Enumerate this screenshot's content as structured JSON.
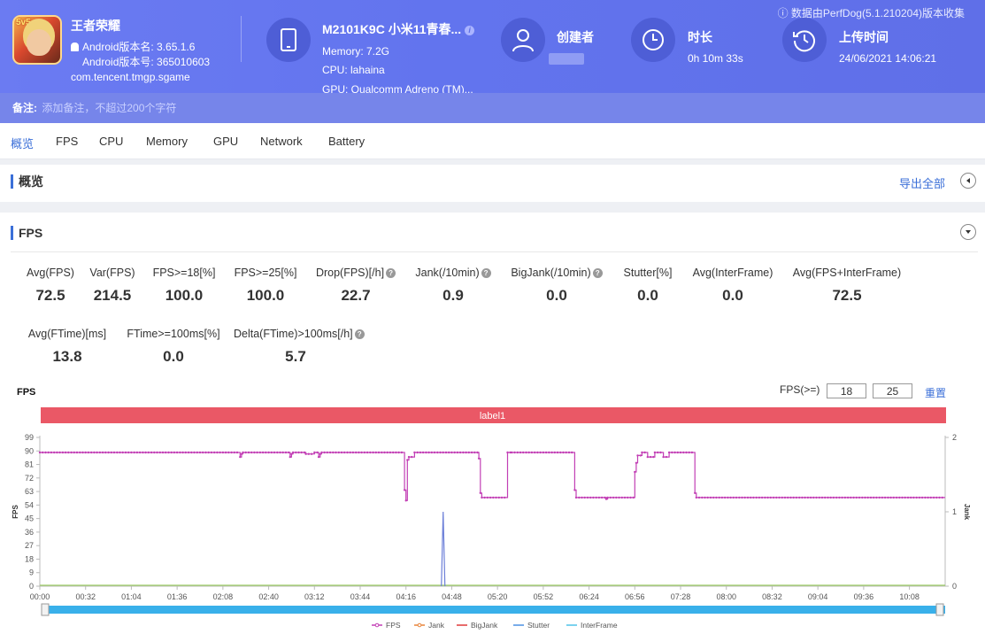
{
  "header": {
    "source_note": "数据由PerfDog(5.1.210204)版本收集",
    "app": {
      "name": "王者荣耀",
      "version_name": "Android版本名: 3.65.1.6",
      "version_code": "Android版本号: 365010603",
      "package": "com.tencent.tmgp.sgame",
      "icon_badge": "5v5"
    },
    "device": {
      "model": "M2101K9C 小米11青春...",
      "memory": "Memory: 7.2G",
      "cpu": "CPU: lahaina",
      "gpu": "GPU: Qualcomm Adreno (TM)..."
    },
    "creator": {
      "label": "创建者",
      "value": ""
    },
    "duration": {
      "label": "时长",
      "value": "0h 10m 33s"
    },
    "upload": {
      "label": "上传时间",
      "value": "24/06/2021 14:06:21"
    },
    "remark": {
      "label": "备注:",
      "placeholder": "添加备注，不超过200个字符"
    }
  },
  "tabs": [
    "概览",
    "FPS",
    "CPU",
    "Memory",
    "GPU",
    "Network",
    "Battery"
  ],
  "overview": {
    "title": "概览",
    "export": "导出全部"
  },
  "fps_section": {
    "title": "FPS",
    "metrics_row1": [
      {
        "label": "Avg(FPS)",
        "value": "72.5",
        "help": false
      },
      {
        "label": "Var(FPS)",
        "value": "214.5",
        "help": false
      },
      {
        "label": "FPS>=18[%]",
        "value": "100.0",
        "help": false
      },
      {
        "label": "FPS>=25[%]",
        "value": "100.0",
        "help": false
      },
      {
        "label": "Drop(FPS)[/h]",
        "value": "22.7",
        "help": true
      },
      {
        "label": "Jank(/10min)",
        "value": "0.9",
        "help": true
      },
      {
        "label": "BigJank(/10min)",
        "value": "0.0",
        "help": true
      },
      {
        "label": "Stutter[%]",
        "value": "0.0",
        "help": false
      },
      {
        "label": "Avg(InterFrame)",
        "value": "0.0",
        "help": false
      },
      {
        "label": "Avg(FPS+InterFrame)",
        "value": "72.5",
        "help": false
      }
    ],
    "metrics_row2": [
      {
        "label": "Avg(FTime)[ms]",
        "value": "13.8",
        "help": false
      },
      {
        "label": "FTime>=100ms[%]",
        "value": "0.0",
        "help": false
      },
      {
        "label": "Delta(FTime)>100ms[/h]",
        "value": "5.7",
        "help": true
      }
    ],
    "chart_title": "FPS",
    "filter_label": "FPS(>=)",
    "filter_values": [
      "18",
      "25"
    ],
    "reset": "重置"
  },
  "chart_data": {
    "type": "line",
    "label_bar": "label1",
    "ylabel": "FPS",
    "y2label": "Jank",
    "ylim": [
      0,
      99
    ],
    "y2lim": [
      0,
      2
    ],
    "yticks": [
      0,
      9,
      18,
      27,
      36,
      45,
      54,
      63,
      72,
      81,
      90,
      99
    ],
    "y2ticks": [
      0,
      1,
      2
    ],
    "xticks": [
      "00:00",
      "00:32",
      "01:04",
      "01:36",
      "02:08",
      "02:40",
      "03:12",
      "03:44",
      "04:16",
      "04:48",
      "05:20",
      "05:52",
      "06:24",
      "06:56",
      "07:28",
      "08:00",
      "08:32",
      "09:04",
      "09:36",
      "10:08"
    ],
    "x_end_seconds": 633,
    "legend": [
      "FPS",
      "Jank",
      "BigJank",
      "Stutter",
      "InterFrame"
    ],
    "colors": {
      "FPS": "#c23fb5",
      "Jank": "#e8843a",
      "BigJank": "#e03b3b",
      "Stutter": "#4a90e2",
      "InterFrame": "#4fc3e8",
      "label": "#ea5866",
      "slider": "#39b0ea"
    },
    "series": [
      {
        "name": "FPS",
        "segments": [
          {
            "t0": 0,
            "t1": 140,
            "v": 89
          },
          {
            "t0": 140,
            "t1": 141,
            "v": 86
          },
          {
            "t0": 141,
            "t1": 142,
            "v": 88
          },
          {
            "t0": 142,
            "t1": 175,
            "v": 89
          },
          {
            "t0": 175,
            "t1": 176,
            "v": 86
          },
          {
            "t0": 176,
            "t1": 177,
            "v": 88
          },
          {
            "t0": 177,
            "t1": 186,
            "v": 89
          },
          {
            "t0": 186,
            "t1": 192,
            "v": 88
          },
          {
            "t0": 192,
            "t1": 195,
            "v": 89
          },
          {
            "t0": 195,
            "t1": 196,
            "v": 86
          },
          {
            "t0": 196,
            "t1": 197,
            "v": 88
          },
          {
            "t0": 197,
            "t1": 255,
            "v": 89
          },
          {
            "t0": 255,
            "t1": 256,
            "v": 64
          },
          {
            "t0": 256,
            "t1": 257,
            "v": 57
          },
          {
            "t0": 257,
            "t1": 258,
            "v": 84
          },
          {
            "t0": 258,
            "t1": 262,
            "v": 86
          },
          {
            "t0": 262,
            "t1": 264,
            "v": 89
          },
          {
            "t0": 264,
            "t1": 307,
            "v": 89
          },
          {
            "t0": 307,
            "t1": 308,
            "v": 85
          },
          {
            "t0": 308,
            "t1": 309,
            "v": 62
          },
          {
            "t0": 309,
            "t1": 327,
            "v": 59
          },
          {
            "t0": 327,
            "t1": 330,
            "v": 89
          },
          {
            "t0": 330,
            "t1": 374,
            "v": 89
          },
          {
            "t0": 374,
            "t1": 375,
            "v": 64
          },
          {
            "t0": 375,
            "t1": 396,
            "v": 59
          },
          {
            "t0": 396,
            "t1": 397,
            "v": 58
          },
          {
            "t0": 397,
            "t1": 416,
            "v": 59
          },
          {
            "t0": 416,
            "t1": 417,
            "v": 76
          },
          {
            "t0": 417,
            "t1": 418,
            "v": 82
          },
          {
            "t0": 418,
            "t1": 421,
            "v": 87
          },
          {
            "t0": 421,
            "t1": 425,
            "v": 89
          },
          {
            "t0": 425,
            "t1": 430,
            "v": 86
          },
          {
            "t0": 430,
            "t1": 436,
            "v": 89
          },
          {
            "t0": 436,
            "t1": 440,
            "v": 86
          },
          {
            "t0": 440,
            "t1": 458,
            "v": 89
          },
          {
            "t0": 458,
            "t1": 459,
            "v": 62
          },
          {
            "t0": 459,
            "t1": 633,
            "v": 59
          }
        ]
      },
      {
        "name": "Jank",
        "points": [
          [
            282,
            1
          ]
        ]
      }
    ]
  }
}
